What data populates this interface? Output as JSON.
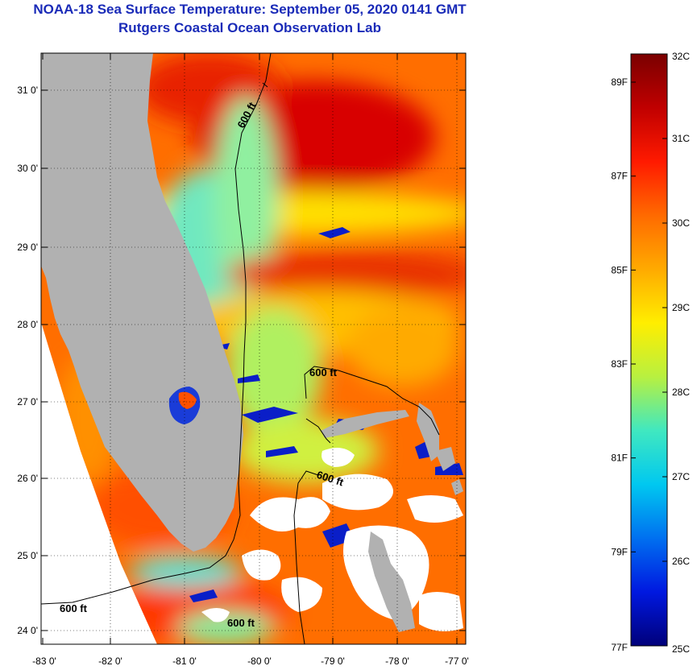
{
  "title": "NOAA-18 Sea Surface Temperature:  September 05, 2020 0141 GMT",
  "subtitle": "Rutgers Coastal Ocean Observation Lab",
  "longitude_labels": [
    "-83 0'",
    "-82 0'",
    "-81 0'",
    "-80 0'",
    "-79 0'",
    "-78 0'",
    "-77 0'"
  ],
  "latitude_labels": [
    "31 0'",
    "30 0'",
    "29 0'",
    "28 0'",
    "27 0'",
    "26 0'",
    "25 0'",
    "24 0'"
  ],
  "contour_labels": [
    "600 ft",
    "600 ft",
    "600 ft",
    "600 ft",
    "600 ft"
  ],
  "colorbar": {
    "celsius": [
      "32C",
      "31C",
      "30C",
      "29C",
      "28C",
      "27C",
      "26C",
      "25C"
    ],
    "fahrenheit": [
      "89F",
      "87F",
      "85F",
      "83F",
      "81F",
      "79F",
      "77F"
    ],
    "range_c": [
      25,
      32
    ],
    "stops": [
      "#7a0000",
      "#c00000",
      "#ff1a00",
      "#ff6a00",
      "#ffaa00",
      "#ffee00",
      "#b8f040",
      "#40e8c0",
      "#00c8f0",
      "#0070f0",
      "#0018e0",
      "#00007a"
    ]
  },
  "colors": {
    "land": "#b1b1b1",
    "title": "#1a2bb8",
    "warm": "#ff5a00",
    "hot": "#d40000",
    "mid": "#ffc000",
    "cool": "#7ef0a0",
    "cold": "#0020d0",
    "cloud": "#ffffff"
  }
}
